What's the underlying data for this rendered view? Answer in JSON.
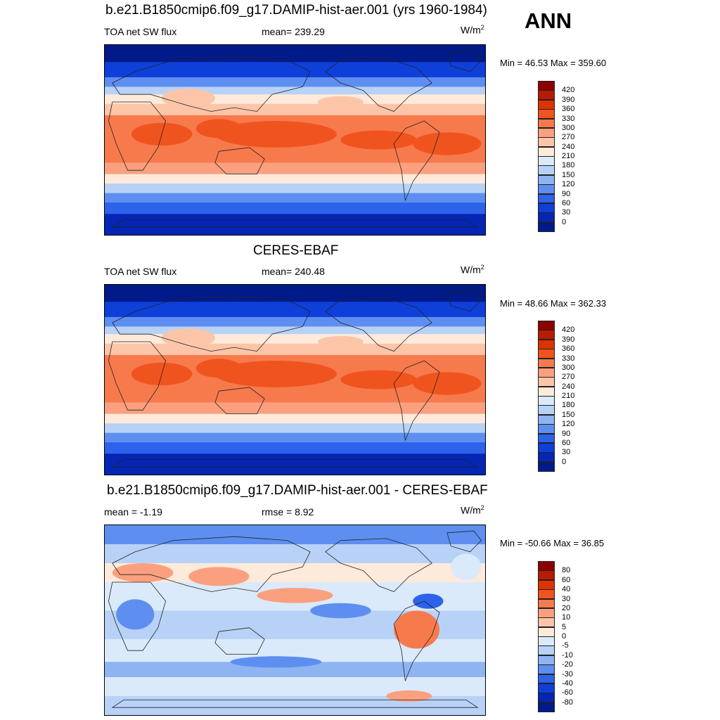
{
  "season": "ANN",
  "units_base": "W/m",
  "units_exp": "2",
  "panels": [
    {
      "title": "b.e21.B1850cmip6.f09_g17.DAMIP-hist-aer.001 (yrs 1960-1984)",
      "left": "TOA net SW flux",
      "center": "mean= 239.29",
      "minmax": "Min =  46.53 Max = 359.60",
      "kind": "abs"
    },
    {
      "title": "CERES-EBAF",
      "left": "TOA net SW flux",
      "center": "mean= 240.48",
      "minmax": "Min =  48.66 Max = 362.33",
      "kind": "abs"
    },
    {
      "title": "b.e21.B1850cmip6.f09_g17.DAMIP-hist-aer.001 - CERES-EBAF",
      "left": "mean =  -1.19",
      "center": "rmse =   8.92",
      "minmax": "Min = -50.66 Max =  36.85",
      "kind": "diff"
    }
  ],
  "colorbars": {
    "abs": {
      "labels": [
        "420",
        "390",
        "360",
        "330",
        "300",
        "270",
        "240",
        "210",
        "180",
        "150",
        "120",
        "90",
        "60",
        "30",
        "0"
      ],
      "colors": [
        "#8b0000",
        "#b71c00",
        "#dc3300",
        "#f0541e",
        "#f77a4d",
        "#fba07f",
        "#fdc5a8",
        "#feeadb",
        "#dbeafb",
        "#b8d2f7",
        "#8fb4f2",
        "#5e8ff0",
        "#2d62ea",
        "#0f3fd9",
        "#0525b5",
        "#001a8a"
      ]
    },
    "diff": {
      "labels": [
        "80",
        "60",
        "40",
        "30",
        "20",
        "10",
        "5",
        "0",
        "-5",
        "-10",
        "-20",
        "-30",
        "-40",
        "-60",
        "-80"
      ],
      "colors": [
        "#8b0000",
        "#b71c00",
        "#dc3300",
        "#f0541e",
        "#f77a4d",
        "#fba07f",
        "#fdc5a8",
        "#feeadb",
        "#dbeafb",
        "#b8d2f7",
        "#8fb4f2",
        "#5e8ff0",
        "#2d62ea",
        "#0f3fd9",
        "#0525b5",
        "#001a8a"
      ]
    }
  }
}
